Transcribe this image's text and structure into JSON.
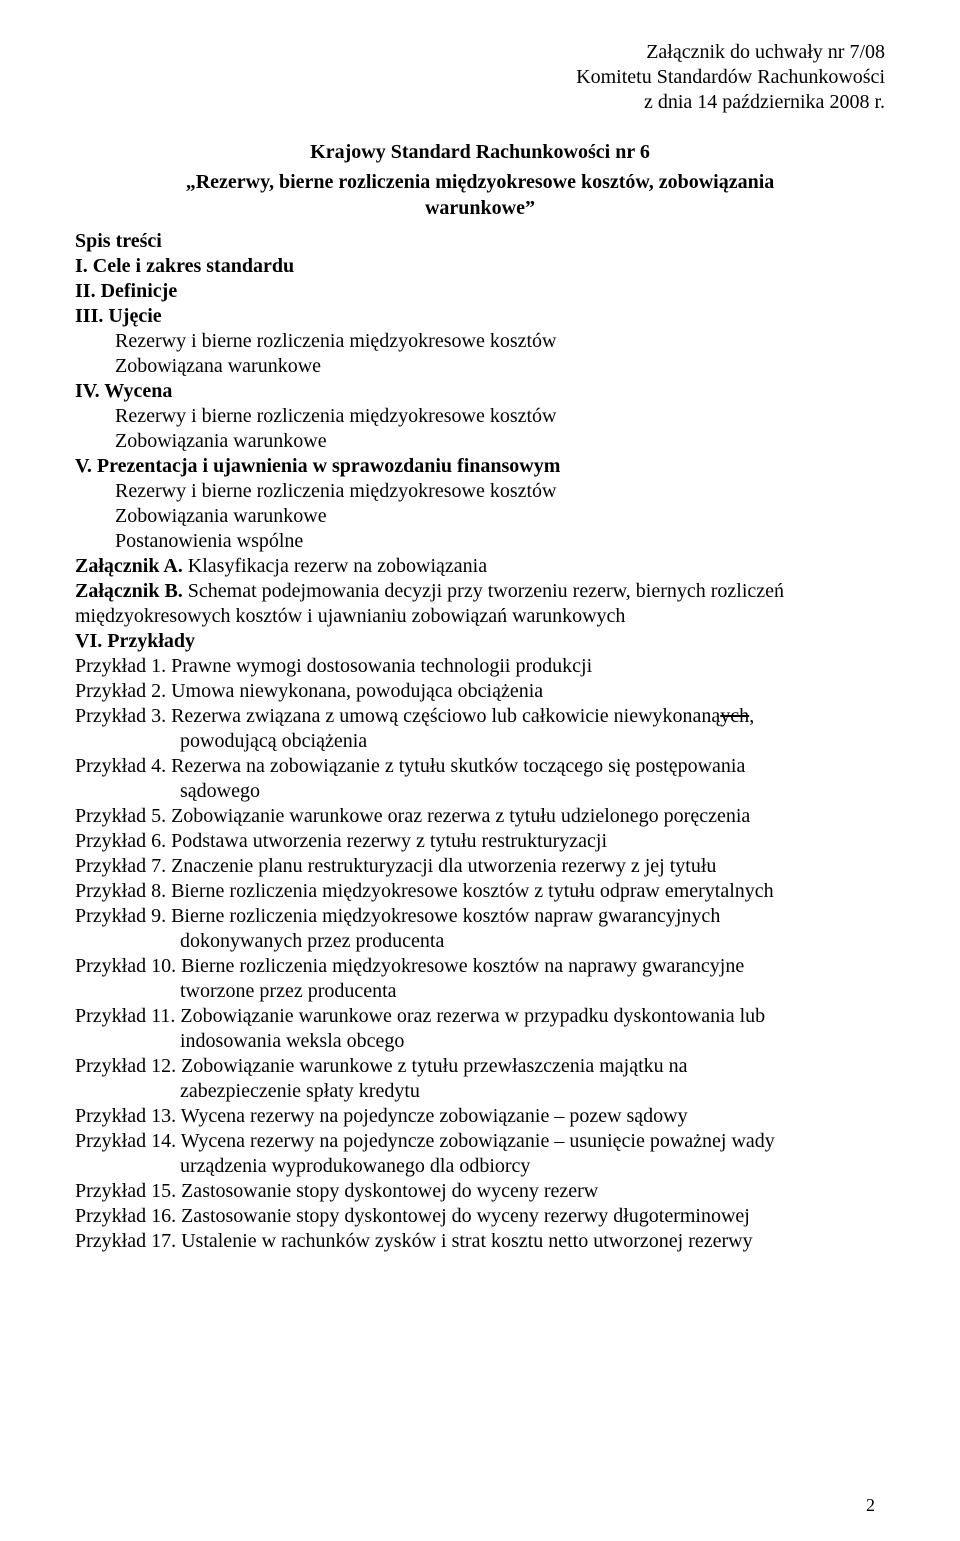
{
  "header": {
    "line1": "Załącznik do uchwały nr 7/08",
    "line2": "Komitetu Standardów Rachunkowości",
    "line3": "z dnia 14 października 2008 r."
  },
  "title": {
    "line1": "Krajowy Standard Rachunkowości nr 6",
    "line2_pre": "„Rezerwy, bierne rozliczenia międzyokresowe kosztów, zobowiązania",
    "line3": "warunkowe”"
  },
  "toc": {
    "heading": "Spis treści",
    "s1": "I. Cele i zakres standardu",
    "s2": "II. Definicje",
    "s3": "III. Ujęcie",
    "s3a": "Rezerwy i bierne rozliczenia międzyokresowe kosztów",
    "s3b": "Zobowiązana warunkowe",
    "s4": "IV. Wycena",
    "s4a": "Rezerwy i bierne rozliczenia międzyokresowe kosztów",
    "s4b": "Zobowiązania warunkowe",
    "s5": "V. Prezentacja i ujawnienia w sprawozdaniu finansowym",
    "s5a": "Rezerwy i bierne rozliczenia międzyokresowe kosztów",
    "s5b": "Zobowiązania warunkowe",
    "s5c": "Postanowienia wspólne",
    "zalA_b": "Załącznik A.",
    "zalA_rest": " Klasyfikacja rezerw na zobowiązania",
    "zalB_b": "Załącznik B.",
    "zalB_rest": " Schemat podejmowania decyzji przy tworzeniu rezerw, biernych rozliczeń",
    "zalB_line2": "międzyokresowych kosztów  i ujawnianiu zobowiązań warunkowych",
    "vi": "VI. Przykłady",
    "p1": "Przykład 1. Prawne wymogi dostosowania technologii produkcji",
    "p2": "Przykład 2. Umowa niewykonana, powodująca obciążenia",
    "p3a": "Przykład 3. Rezerwa związana z umową częściowo lub całkowicie niewykonaną",
    "p3_strike": "ych",
    "p3_comma": ",",
    "p3b": "powodującą obciążenia",
    "p4a": "Przykład 4. Rezerwa na zobowiązanie z tytułu skutków toczącego się postępowania",
    "p4b": "sądowego",
    "p5": "Przykład 5. Zobowiązanie warunkowe oraz rezerwa z tytułu udzielonego poręczenia",
    "p6": "Przykład 6. Podstawa utworzenia rezerwy z tytułu restrukturyzacji",
    "p7": "Przykład 7. Znaczenie planu restrukturyzacji dla utworzenia rezerwy z jej tytułu",
    "p8": "Przykład 8. Bierne rozliczenia międzyokresowe kosztów z tytułu odpraw emerytalnych",
    "p9a": "Przykład 9. Bierne rozliczenia międzyokresowe kosztów napraw gwarancyjnych",
    "p9b": "dokonywanych przez producenta",
    "p10a": "Przykład 10. Bierne rozliczenia międzyokresowe kosztów na naprawy gwarancyjne",
    "p10b": "tworzone przez producenta",
    "p11a": "Przykład 11. Zobowiązanie warunkowe oraz rezerwa w przypadku dyskontowania lub",
    "p11b": "indosowania weksla obcego",
    "p12a": "Przykład 12. Zobowiązanie warunkowe z tytułu przewłaszczenia majątku na",
    "p12b": "zabezpieczenie spłaty kredytu",
    "p13": "Przykład 13. Wycena rezerwy na pojedyncze zobowiązanie – pozew sądowy",
    "p14a": "Przykład 14. Wycena rezerwy na pojedyncze zobowiązanie – usunięcie poważnej wady",
    "p14b": "urządzenia wyprodukowanego dla odbiorcy",
    "p15": "Przykład 15. Zastosowanie stopy dyskontowej do wyceny rezerw",
    "p16": "Przykład 16. Zastosowanie stopy dyskontowej do wyceny rezerwy długoterminowej",
    "p17": "Przykład 17. Ustalenie w rachunków zysków i strat kosztu netto utworzonej rezerwy"
  },
  "page_number": "2"
}
